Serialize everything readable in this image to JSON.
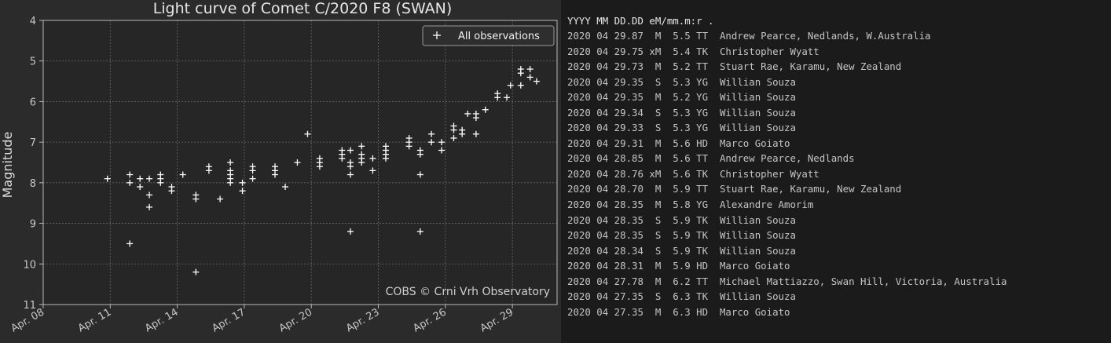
{
  "chart_data": {
    "type": "scatter",
    "title": "Light curve of Comet C/2020 F8 (SWAN)",
    "ylabel": "Magnitude",
    "xlabel": "",
    "y_axis_inverted": true,
    "ylim": [
      4,
      11
    ],
    "yticks": [
      "4",
      "5",
      "6",
      "7",
      "8",
      "9",
      "10",
      "11"
    ],
    "xlim": [
      "2020-04-08",
      "2020-05-01"
    ],
    "xticks": [
      "Apr. 08",
      "Apr. 11",
      "Apr. 14",
      "Apr. 17",
      "Apr. 20",
      "Apr. 23",
      "Apr. 26",
      "Apr. 29"
    ],
    "xtick_dates": [
      "2020-04-08",
      "2020-04-11",
      "2020-04-14",
      "2020-04-17",
      "2020-04-20",
      "2020-04-23",
      "2020-04-26",
      "2020-04-29"
    ],
    "grid": true,
    "legend_position": "top-right",
    "annotation": "COBS © Crni Vrh Observatory",
    "series": [
      {
        "name": "All observations",
        "marker": "+",
        "color": "#ffffff",
        "points": [
          {
            "x": "2020-04-10 21:00",
            "y": 7.9
          },
          {
            "x": "2020-04-11 21:00",
            "y": 7.8
          },
          {
            "x": "2020-04-11 21:00",
            "y": 8.0
          },
          {
            "x": "2020-04-11 21:00",
            "y": 9.5
          },
          {
            "x": "2020-04-12 08:00",
            "y": 7.9
          },
          {
            "x": "2020-04-12 08:00",
            "y": 8.1
          },
          {
            "x": "2020-04-12 18:00",
            "y": 7.9
          },
          {
            "x": "2020-04-12 18:00",
            "y": 8.3
          },
          {
            "x": "2020-04-12 18:00",
            "y": 8.6
          },
          {
            "x": "2020-04-13 06:00",
            "y": 7.8
          },
          {
            "x": "2020-04-13 06:00",
            "y": 7.9
          },
          {
            "x": "2020-04-13 06:00",
            "y": 8.0
          },
          {
            "x": "2020-04-13 18:00",
            "y": 8.1
          },
          {
            "x": "2020-04-13 18:00",
            "y": 8.2
          },
          {
            "x": "2020-04-14 06:00",
            "y": 7.8
          },
          {
            "x": "2020-04-14 20:00",
            "y": 8.3
          },
          {
            "x": "2020-04-14 20:00",
            "y": 8.4
          },
          {
            "x": "2020-04-14 20:00",
            "y": 10.2
          },
          {
            "x": "2020-04-15 10:00",
            "y": 7.6
          },
          {
            "x": "2020-04-15 10:00",
            "y": 7.7
          },
          {
            "x": "2020-04-15 22:00",
            "y": 8.4
          },
          {
            "x": "2020-04-16 09:00",
            "y": 7.5
          },
          {
            "x": "2020-04-16 09:00",
            "y": 7.7
          },
          {
            "x": "2020-04-16 09:00",
            "y": 7.8
          },
          {
            "x": "2020-04-16 09:00",
            "y": 7.9
          },
          {
            "x": "2020-04-16 09:00",
            "y": 8.0
          },
          {
            "x": "2020-04-16 22:00",
            "y": 8.0
          },
          {
            "x": "2020-04-16 22:00",
            "y": 8.2
          },
          {
            "x": "2020-04-17 09:00",
            "y": 7.6
          },
          {
            "x": "2020-04-17 09:00",
            "y": 7.7
          },
          {
            "x": "2020-04-17 09:00",
            "y": 7.9
          },
          {
            "x": "2020-04-18 09:00",
            "y": 7.6
          },
          {
            "x": "2020-04-18 09:00",
            "y": 7.7
          },
          {
            "x": "2020-04-18 09:00",
            "y": 7.8
          },
          {
            "x": "2020-04-18 20:00",
            "y": 8.1
          },
          {
            "x": "2020-04-19 09:00",
            "y": 7.5
          },
          {
            "x": "2020-04-19 20:00",
            "y": 6.8
          },
          {
            "x": "2020-04-20 09:00",
            "y": 7.4
          },
          {
            "x": "2020-04-20 09:00",
            "y": 7.5
          },
          {
            "x": "2020-04-20 09:00",
            "y": 7.6
          },
          {
            "x": "2020-04-21 09:00",
            "y": 7.2
          },
          {
            "x": "2020-04-21 09:00",
            "y": 7.3
          },
          {
            "x": "2020-04-21 09:00",
            "y": 7.4
          },
          {
            "x": "2020-04-21 18:00",
            "y": 7.2
          },
          {
            "x": "2020-04-21 18:00",
            "y": 7.5
          },
          {
            "x": "2020-04-21 18:00",
            "y": 7.6
          },
          {
            "x": "2020-04-21 18:00",
            "y": 7.8
          },
          {
            "x": "2020-04-21 18:00",
            "y": 9.2
          },
          {
            "x": "2020-04-22 06:00",
            "y": 7.1
          },
          {
            "x": "2020-04-22 06:00",
            "y": 7.3
          },
          {
            "x": "2020-04-22 06:00",
            "y": 7.4
          },
          {
            "x": "2020-04-22 06:00",
            "y": 7.5
          },
          {
            "x": "2020-04-22 18:00",
            "y": 7.4
          },
          {
            "x": "2020-04-22 18:00",
            "y": 7.7
          },
          {
            "x": "2020-04-23 08:00",
            "y": 7.1
          },
          {
            "x": "2020-04-23 08:00",
            "y": 7.2
          },
          {
            "x": "2020-04-23 08:00",
            "y": 7.3
          },
          {
            "x": "2020-04-23 08:00",
            "y": 7.4
          },
          {
            "x": "2020-04-24 09:00",
            "y": 6.9
          },
          {
            "x": "2020-04-24 09:00",
            "y": 7.0
          },
          {
            "x": "2020-04-24 09:00",
            "y": 7.1
          },
          {
            "x": "2020-04-24 21:00",
            "y": 7.2
          },
          {
            "x": "2020-04-24 21:00",
            "y": 7.3
          },
          {
            "x": "2020-04-24 21:00",
            "y": 7.8
          },
          {
            "x": "2020-04-24 21:00",
            "y": 9.2
          },
          {
            "x": "2020-04-25 09:00",
            "y": 6.8
          },
          {
            "x": "2020-04-25 09:00",
            "y": 7.0
          },
          {
            "x": "2020-04-25 20:00",
            "y": 7.0
          },
          {
            "x": "2020-04-25 20:00",
            "y": 7.2
          },
          {
            "x": "2020-04-26 09:00",
            "y": 6.6
          },
          {
            "x": "2020-04-26 09:00",
            "y": 6.7
          },
          {
            "x": "2020-04-26 09:00",
            "y": 6.9
          },
          {
            "x": "2020-04-26 18:00",
            "y": 6.7
          },
          {
            "x": "2020-04-26 18:00",
            "y": 6.8
          },
          {
            "x": "2020-04-27 00:00",
            "y": 6.3
          },
          {
            "x": "2020-04-27 09:00",
            "y": 6.3
          },
          {
            "x": "2020-04-27 09:00",
            "y": 6.4
          },
          {
            "x": "2020-04-27 09:00",
            "y": 6.8
          },
          {
            "x": "2020-04-27 19:00",
            "y": 6.2
          },
          {
            "x": "2020-04-28 08:00",
            "y": 5.8
          },
          {
            "x": "2020-04-28 08:00",
            "y": 5.9
          },
          {
            "x": "2020-04-28 18:00",
            "y": 5.9
          },
          {
            "x": "2020-04-28 22:00",
            "y": 5.6
          },
          {
            "x": "2020-04-29 09:00",
            "y": 5.2
          },
          {
            "x": "2020-04-29 09:00",
            "y": 5.3
          },
          {
            "x": "2020-04-29 09:00",
            "y": 5.6
          },
          {
            "x": "2020-04-29 19:00",
            "y": 5.2
          },
          {
            "x": "2020-04-29 19:00",
            "y": 5.4
          },
          {
            "x": "2020-04-30 02:00",
            "y": 5.5
          }
        ]
      }
    ]
  },
  "observations": {
    "header": "YYYY MM DD.DD eM/mm.m:r .",
    "rows": [
      "2020 04 29.87  M  5.5 TT  Andrew Pearce, Nedlands, W.Australia",
      "2020 04 29.75 xM  5.4 TK  Christopher Wyatt",
      "2020 04 29.73  M  5.2 TT  Stuart Rae, Karamu, New Zealand",
      "2020 04 29.35  S  5.3 YG  Willian Souza",
      "2020 04 29.35  M  5.2 YG  Willian Souza",
      "2020 04 29.34  S  5.3 YG  Willian Souza",
      "2020 04 29.33  S  5.3 YG  Willian Souza",
      "2020 04 29.31  M  5.6 HD  Marco Goiato",
      "2020 04 28.85  M  5.6 TT  Andrew Pearce, Nedlands",
      "2020 04 28.76 xM  5.6 TK  Christopher Wyatt",
      "2020 04 28.70  M  5.9 TT  Stuart Rae, Karamu, New Zealand",
      "2020 04 28.35  M  5.8 YG  Alexandre Amorim",
      "2020 04 28.35  S  5.9 TK  Willian Souza",
      "2020 04 28.35  S  5.9 TK  Willian Souza",
      "2020 04 28.34  S  5.9 TK  Willian Souza",
      "2020 04 28.31  M  5.9 HD  Marco Goiato",
      "2020 04 27.78  M  6.2 TT  Michael Mattiazzo, Swan Hill, Victoria, Australia",
      "2020 04 27.35  S  6.3 TK  Willian Souza",
      "2020 04 27.35  M  6.3 HD  Marco Goiato"
    ]
  },
  "colors": {
    "chart_background": "#2b2b2b",
    "plot_background": "#262626",
    "grid": "#6a6a6a",
    "marker": "#ffffff",
    "list_background": "#1b1b1b",
    "list_text": "#c4c4c4"
  }
}
